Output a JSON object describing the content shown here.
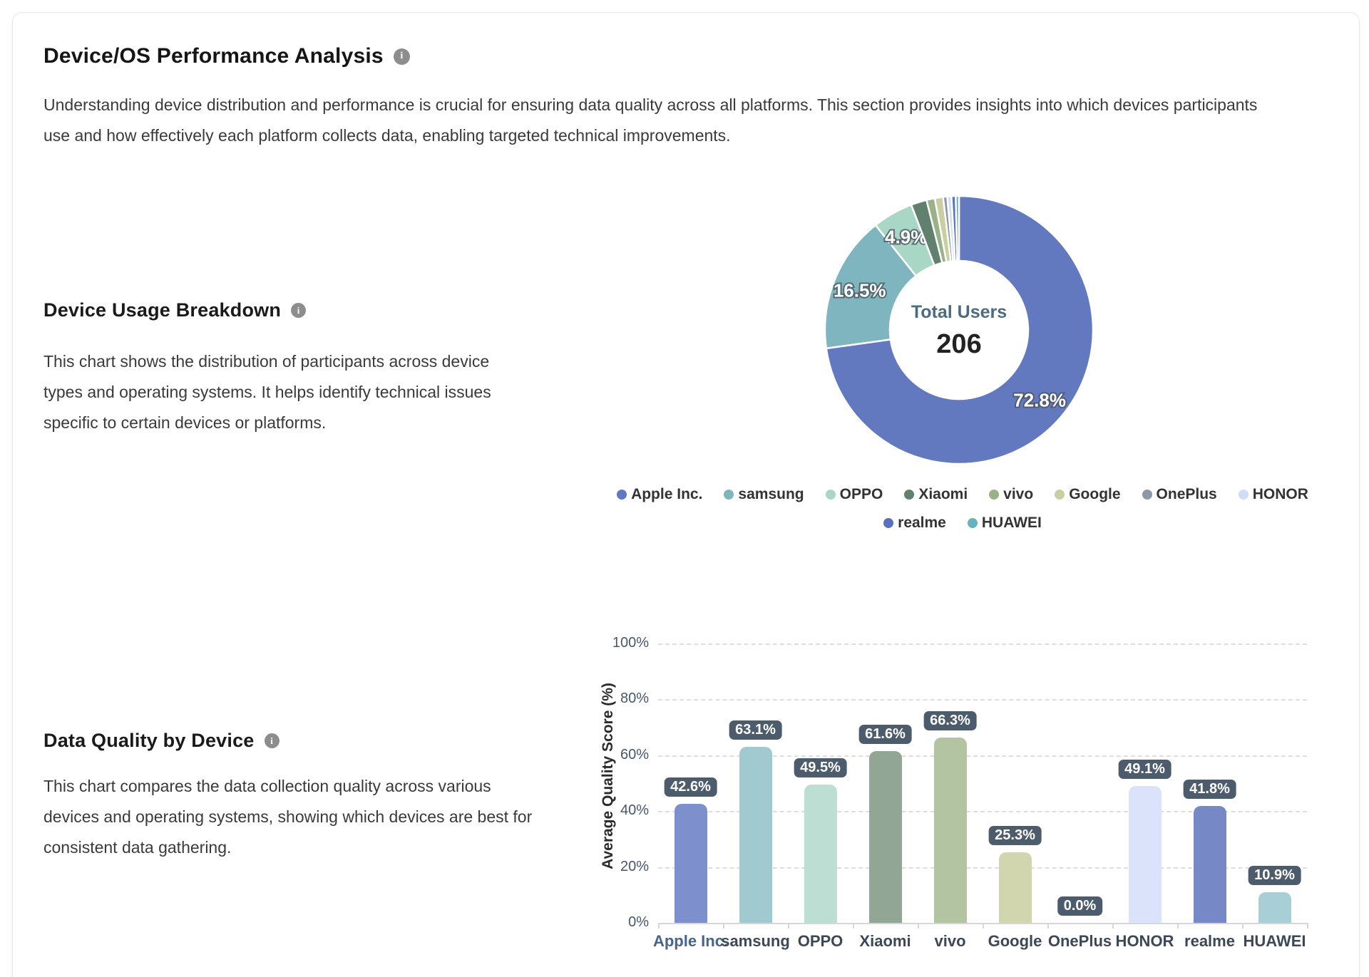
{
  "page": {
    "title": "Device/OS Performance Analysis",
    "intro": "Understanding device distribution and performance is crucial for ensuring data quality across all platforms. This section provides insights into which devices participants use and how effectively each platform collects data, enabling targeted technical improvements."
  },
  "sections": {
    "usage": {
      "heading": "Device Usage Breakdown",
      "description": "This chart shows the distribution of participants across device types and operating systems. It helps identify technical issues specific to certain devices or platforms."
    },
    "quality": {
      "heading": "Data Quality by Device",
      "description": "This chart compares the data collection quality across various devices and operating systems, showing which devices are best for consistent data gathering."
    }
  },
  "icons": {
    "info": "i"
  },
  "colors": {
    "badge_bg": "#4d5c6c",
    "center_label": "#4a6b80",
    "center_value": "#222222",
    "axis_text": "#47566a",
    "xlabel_default": "#3c4858",
    "xlabel_first": "#46648e"
  },
  "chart_data": [
    {
      "type": "pie",
      "subtype": "donut",
      "center_label": "Total Users",
      "center_value": "206",
      "legend_position": "bottom",
      "slices": [
        {
          "name": "Apple Inc.",
          "pct": 72.8,
          "label": "72.8%",
          "color": "#6379BF"
        },
        {
          "name": "samsung",
          "pct": 16.5,
          "label": "16.5%",
          "color": "#7FB5BF"
        },
        {
          "name": "OPPO",
          "pct": 4.9,
          "label": "4.9%",
          "color": "#A9D7C6"
        },
        {
          "name": "Xiaomi",
          "pct": 1.9,
          "label": "",
          "color": "#61806D"
        },
        {
          "name": "vivo",
          "pct": 1.0,
          "label": "",
          "color": "#99B287"
        },
        {
          "name": "Google",
          "pct": 1.0,
          "label": "",
          "color": "#C9CFA0"
        },
        {
          "name": "OnePlus",
          "pct": 0.5,
          "label": "",
          "color": "#8C99A7"
        },
        {
          "name": "HONOR",
          "pct": 0.5,
          "label": "",
          "color": "#CFDDF8"
        },
        {
          "name": "realme",
          "pct": 0.5,
          "label": "",
          "color": "#5A6FBE"
        },
        {
          "name": "HUAWEI",
          "pct": 0.4,
          "label": "",
          "color": "#68B2BC"
        }
      ]
    },
    {
      "type": "bar",
      "categories": [
        "Apple Inc.",
        "samsung",
        "OPPO",
        "Xiaomi",
        "vivo",
        "Google",
        "OnePlus",
        "HONOR",
        "realme",
        "HUAWEI"
      ],
      "values": [
        42.6,
        63.1,
        49.5,
        61.6,
        66.3,
        25.3,
        0.0,
        49.1,
        41.8,
        10.9
      ],
      "value_labels": [
        "42.6%",
        "63.1%",
        "49.5%",
        "61.6%",
        "66.3%",
        "25.3%",
        "0.0%",
        "49.1%",
        "41.8%",
        "10.9%"
      ],
      "bar_colors": [
        "#7D90CB",
        "#A1C9D0",
        "#BCDED3",
        "#92A696",
        "#B2C4A2",
        "#D1D6AE",
        "#AAB3BD",
        "#DAE3FA",
        "#7688C6",
        "#A9CFD6"
      ],
      "ylabel": "Average Quality Score (%)",
      "yticks": [
        "0%",
        "20%",
        "40%",
        "60%",
        "80%",
        "100%"
      ],
      "ylim": [
        0,
        100
      ],
      "grid": "dashed-horizontal"
    }
  ]
}
